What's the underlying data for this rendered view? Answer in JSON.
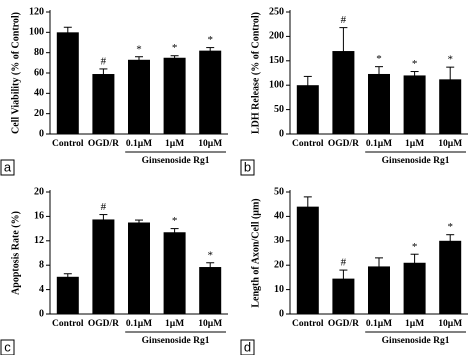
{
  "chart_data": [
    {
      "type": "bar",
      "panel": "a",
      "y_label": "Cell Viability (% of Control)",
      "categories": [
        "Control",
        "OGD/R",
        "0.1µM",
        "1µM",
        "10µM"
      ],
      "group_label": "Ginsenoside Rg1",
      "values": [
        100,
        59,
        73,
        75,
        82
      ],
      "errors": [
        5,
        5,
        3,
        2,
        3
      ],
      "annotations": [
        null,
        "#",
        "*",
        "*",
        "*"
      ],
      "color": "#000000",
      "ylim": [
        0,
        120
      ],
      "yticks": [
        0,
        20,
        40,
        60,
        80,
        100,
        120
      ]
    },
    {
      "type": "bar",
      "panel": "b",
      "y_label": "LDH Release (% of Control)",
      "categories": [
        "Control",
        "OGD/R",
        "0.1µM",
        "1µM",
        "10µM"
      ],
      "group_label": "Ginsenoside Rg1",
      "values": [
        100,
        170,
        123,
        120,
        112
      ],
      "errors": [
        18,
        48,
        15,
        8,
        25
      ],
      "annotations": [
        null,
        "#",
        "*",
        "*",
        "*"
      ],
      "color": "#000000",
      "ylim": [
        0,
        250
      ],
      "yticks": [
        0,
        50,
        100,
        150,
        200,
        250
      ]
    },
    {
      "type": "bar",
      "panel": "c",
      "y_label": "Apoptosis Rate   (%)",
      "categories": [
        "Control",
        "OGD/R",
        "0.1µM",
        "1µM",
        "10µM"
      ],
      "group_label": "Ginsenoside Rg1",
      "values": [
        6.1,
        15.5,
        15,
        13.4,
        7.7
      ],
      "errors": [
        0.5,
        0.8,
        0.4,
        0.6,
        0.7
      ],
      "annotations": [
        null,
        "#",
        null,
        "*",
        "*"
      ],
      "color": "#000000",
      "ylim": [
        0,
        20
      ],
      "yticks": [
        0,
        4,
        8,
        12,
        16,
        20
      ]
    },
    {
      "type": "bar",
      "panel": "d",
      "y_label": "Length of Axon/Cell (μm)",
      "categories": [
        "Control",
        "OGD/R",
        "0.1µM",
        "1µM",
        "10µM"
      ],
      "group_label": "Ginsenoside Rg1",
      "values": [
        44,
        14.5,
        19.5,
        21,
        30
      ],
      "errors": [
        4,
        3.5,
        3.5,
        3.5,
        2.5
      ],
      "annotations": [
        null,
        "#",
        null,
        "*",
        "*"
      ],
      "color": "#000000",
      "ylim": [
        0,
        50
      ],
      "yticks": [
        0,
        10,
        20,
        30,
        40,
        50
      ]
    }
  ]
}
